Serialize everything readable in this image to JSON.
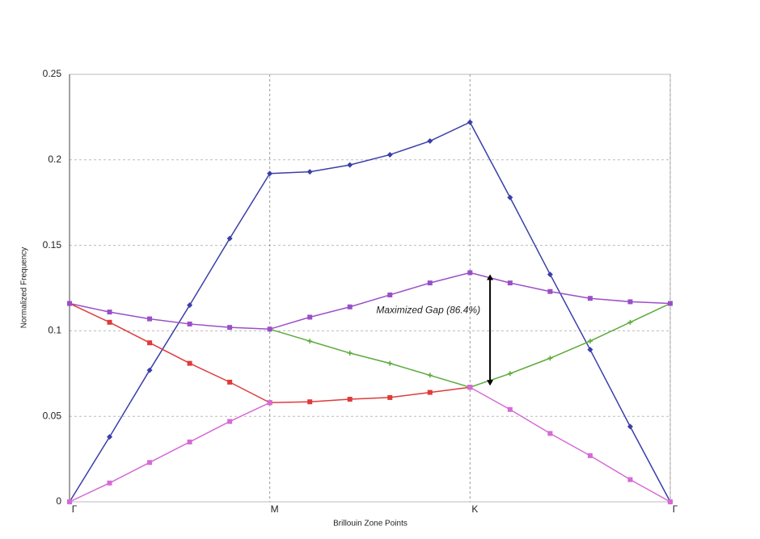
{
  "chart_data": {
    "type": "line",
    "xlabel": "Brillouin Zone Points",
    "ylabel": "Normalized Frequency",
    "x": [
      0,
      1,
      2,
      3,
      4,
      5,
      6,
      7,
      8,
      9,
      10,
      11,
      12,
      13,
      14,
      15
    ],
    "xlim": [
      0,
      15
    ],
    "xticks": [
      {
        "value": 0,
        "label": "Γ"
      },
      {
        "value": 5,
        "label": "M"
      },
      {
        "value": 10,
        "label": "K"
      },
      {
        "value": 15,
        "label": "Γ"
      }
    ],
    "ylim": [
      0,
      0.25
    ],
    "yticks": [
      0,
      0.05,
      0.1,
      0.15,
      0.2,
      0.25
    ],
    "grid": true,
    "series": [
      {
        "color": "#3a3fa8",
        "marker": "diamond",
        "values": [
          0,
          0.038,
          0.077,
          0.115,
          0.154,
          0.192,
          0.193,
          0.197,
          0.203,
          0.211,
          0.222,
          0.178,
          0.133,
          0.089,
          0.044,
          0
        ]
      },
      {
        "color": "#e03a3a",
        "marker": "square",
        "values": [
          0.116,
          0.105,
          0.093,
          0.081,
          0.07,
          0.058,
          0.0585,
          0.06,
          0.061,
          0.064,
          0.067,
          null,
          null,
          null,
          null,
          null
        ]
      },
      {
        "color": "#5aaa3a",
        "marker": "plus",
        "values": [
          null,
          null,
          null,
          null,
          null,
          0.101,
          0.094,
          0.087,
          0.081,
          0.074,
          0.067,
          0.075,
          0.084,
          0.094,
          0.105,
          0.116
        ]
      },
      {
        "color": "#9a4fc8",
        "marker": "square",
        "values": [
          0.116,
          0.111,
          0.107,
          0.104,
          0.102,
          0.101,
          0.108,
          0.114,
          0.121,
          0.128,
          0.134,
          0.128,
          0.123,
          0.119,
          0.117,
          0.116
        ]
      },
      {
        "color": "#d66ad6",
        "marker": "square",
        "values": [
          0,
          0.011,
          0.023,
          0.035,
          0.047,
          0.058,
          null,
          null,
          null,
          null,
          0.067,
          0.054,
          0.04,
          0.027,
          0.013,
          0
        ]
      }
    ],
    "annotation": "Maximized Gap  (86.4%)"
  }
}
